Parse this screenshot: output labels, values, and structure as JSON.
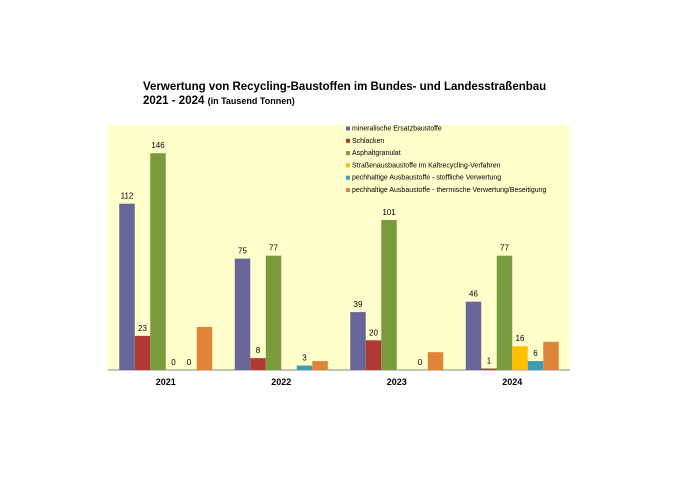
{
  "chart_data": {
    "type": "bar",
    "title": "Verwertung von Recycling-Baustoffen im Bundes- und Landesstraßenbau",
    "subtitle": "2021 - 2024",
    "unit_note": "(in Tausend Tonnen)",
    "xlabel": "",
    "ylabel": "",
    "categories": [
      "2021",
      "2022",
      "2023",
      "2024"
    ],
    "ylim": [
      0,
      165
    ],
    "grid": false,
    "legend_position": "top-right",
    "background_color": "#FFFFCC",
    "series": [
      {
        "name": "mineralische Ersatzbaustoffe",
        "color": "#666699",
        "values": [
          112,
          75,
          39,
          46
        ],
        "labels": [
          "112",
          "75",
          "39",
          "46"
        ]
      },
      {
        "name": "Schlacken",
        "color": "#B03A33",
        "values": [
          23,
          8,
          20,
          1
        ],
        "labels": [
          "23",
          "8",
          "20",
          "1"
        ]
      },
      {
        "name": "Asphaltgranulat",
        "color": "#7A9A3E",
        "values": [
          146,
          77,
          101,
          77
        ],
        "labels": [
          "146",
          "77",
          "101",
          "77"
        ]
      },
      {
        "name": "Straßenausbaustoffe im Kaltrecycling-Verfahren",
        "color": "#FFC000",
        "values": [
          0,
          0,
          0,
          16
        ],
        "labels": [
          "0",
          "",
          "",
          "16"
        ]
      },
      {
        "name": "pechhaltige Ausbaustoffe - stoffliche Verwertung",
        "color": "#3E9CB5",
        "values": [
          0,
          3,
          0,
          6
        ],
        "labels": [
          "0",
          "3",
          "0",
          "6"
        ]
      },
      {
        "name": "pechhaltige Ausbaustoffe - thermische Verwertung/Beseitigung",
        "color": "#E0843A",
        "values": [
          29,
          6,
          12,
          19
        ],
        "labels": [
          "",
          "",
          "",
          ""
        ]
      }
    ]
  }
}
